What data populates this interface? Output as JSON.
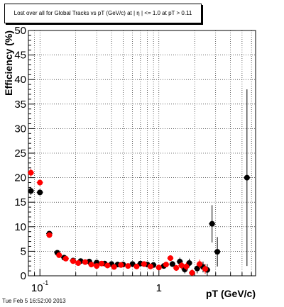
{
  "chart_data": {
    "type": "scatter",
    "title": "Lost over all for Global Tracks vs pT (GeV/c) at | η | <= 1.0 at pT > 0.11",
    "xlabel": "pT (GeV/c)",
    "ylabel": "Efficiency (%)",
    "xscale": "log",
    "xlim": [
      0.08,
      6.5
    ],
    "ylim": [
      0,
      50
    ],
    "xticks": [
      {
        "value": 0.1,
        "base": "10",
        "exp": "-1"
      },
      {
        "value": 1,
        "base": "1",
        "exp": ""
      }
    ],
    "yticks": [
      "0",
      "5",
      "10",
      "15",
      "20",
      "25",
      "30",
      "35",
      "40",
      "45",
      "50"
    ],
    "grid": true,
    "colors": {
      "series_a": "#000000",
      "series_b": "#ff0000"
    },
    "series": [
      {
        "color": "black",
        "points": [
          {
            "x": 0.084,
            "y": 17.3,
            "ey": 0.8
          },
          {
            "x": 0.1,
            "y": 17.0,
            "ey": 0.6
          },
          {
            "x": 0.12,
            "y": 8.6,
            "ey": 0.5
          },
          {
            "x": 0.14,
            "y": 4.7,
            "ey": 0.3
          },
          {
            "x": 0.16,
            "y": 3.7,
            "ey": 0.3
          },
          {
            "x": 0.19,
            "y": 3.1,
            "ey": 0.3
          },
          {
            "x": 0.22,
            "y": 3.0,
            "ey": 0.3
          },
          {
            "x": 0.26,
            "y": 2.9,
            "ey": 0.3
          },
          {
            "x": 0.3,
            "y": 2.7,
            "ey": 0.3
          },
          {
            "x": 0.35,
            "y": 2.5,
            "ey": 0.3
          },
          {
            "x": 0.4,
            "y": 2.4,
            "ey": 0.3
          },
          {
            "x": 0.45,
            "y": 2.3,
            "ey": 0.3
          },
          {
            "x": 0.5,
            "y": 2.3,
            "ey": 0.3
          },
          {
            "x": 0.6,
            "y": 2.4,
            "ey": 0.3
          },
          {
            "x": 0.7,
            "y": 2.5,
            "ey": 0.3
          },
          {
            "x": 0.8,
            "y": 2.3,
            "ey": 0.4
          },
          {
            "x": 0.9,
            "y": 2.2,
            "ey": 0.4
          },
          {
            "x": 1.1,
            "y": 2.0,
            "ey": 0.5
          },
          {
            "x": 1.3,
            "y": 2.4,
            "ey": 0.6
          },
          {
            "x": 1.5,
            "y": 2.9,
            "ey": 0.8
          },
          {
            "x": 1.65,
            "y": 1.3,
            "ey": 0.8
          },
          {
            "x": 1.8,
            "y": 2.6,
            "ey": 0.9
          },
          {
            "x": 2.1,
            "y": 1.5,
            "ey": 1.0
          },
          {
            "x": 2.35,
            "y": 1.8,
            "ey": 1.1
          },
          {
            "x": 2.55,
            "y": 1.2,
            "ey": 1.2
          },
          {
            "x": 2.8,
            "y": 10.6,
            "ey": 3.8
          },
          {
            "x": 3.1,
            "y": 4.9,
            "ey": 3.0
          },
          {
            "x": 5.5,
            "y": 20.0,
            "ey": 18.0
          }
        ]
      },
      {
        "color": "red",
        "points": [
          {
            "x": 0.084,
            "y": 21.0,
            "ey": 0.8
          },
          {
            "x": 0.1,
            "y": 19.0,
            "ey": 0.6
          },
          {
            "x": 0.12,
            "y": 8.3,
            "ey": 0.5
          },
          {
            "x": 0.145,
            "y": 4.2,
            "ey": 0.3
          },
          {
            "x": 0.165,
            "y": 3.5,
            "ey": 0.3
          },
          {
            "x": 0.19,
            "y": 3.0,
            "ey": 0.3
          },
          {
            "x": 0.21,
            "y": 2.6,
            "ey": 0.3
          },
          {
            "x": 0.24,
            "y": 2.8,
            "ey": 0.3
          },
          {
            "x": 0.27,
            "y": 2.3,
            "ey": 0.3
          },
          {
            "x": 0.3,
            "y": 2.0,
            "ey": 0.3
          },
          {
            "x": 0.33,
            "y": 2.5,
            "ey": 0.3
          },
          {
            "x": 0.37,
            "y": 2.1,
            "ey": 0.3
          },
          {
            "x": 0.42,
            "y": 1.8,
            "ey": 0.3
          },
          {
            "x": 0.48,
            "y": 2.2,
            "ey": 0.3
          },
          {
            "x": 0.55,
            "y": 2.0,
            "ey": 0.3
          },
          {
            "x": 0.65,
            "y": 1.9,
            "ey": 0.3
          },
          {
            "x": 0.75,
            "y": 2.4,
            "ey": 0.4
          },
          {
            "x": 0.85,
            "y": 1.9,
            "ey": 0.4
          },
          {
            "x": 1.0,
            "y": 1.7,
            "ey": 0.4
          },
          {
            "x": 1.15,
            "y": 2.3,
            "ey": 0.5
          },
          {
            "x": 1.25,
            "y": 3.6,
            "ey": 0.6
          },
          {
            "x": 1.4,
            "y": 1.6,
            "ey": 0.6
          },
          {
            "x": 1.55,
            "y": 2.1,
            "ey": 0.7
          },
          {
            "x": 1.7,
            "y": 1.9,
            "ey": 0.8
          },
          {
            "x": 1.9,
            "y": 0.6,
            "ey": 0.8
          },
          {
            "x": 2.2,
            "y": 2.4,
            "ey": 0.9
          },
          {
            "x": 2.45,
            "y": 1.4,
            "ey": 1.0
          }
        ]
      }
    ]
  },
  "footer": "Tue Feb  5 16:52:00 2013"
}
